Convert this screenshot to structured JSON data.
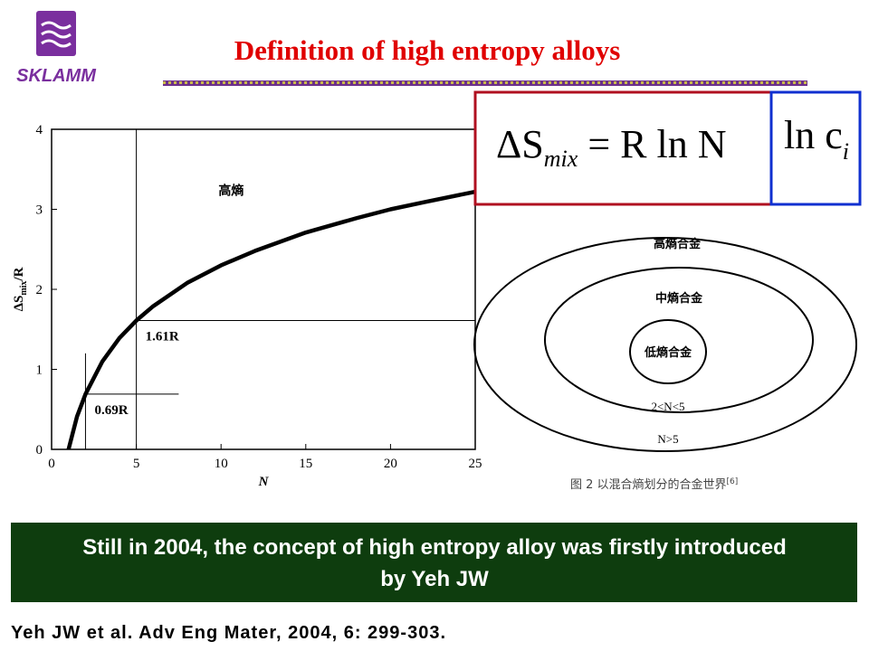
{
  "header": {
    "logo_text": "SKLAMM",
    "title": "Definition of high entropy alloys"
  },
  "chart_data": {
    "type": "line",
    "x_label": "N",
    "y_label": {
      "main": "ΔS",
      "sub": "mix",
      "rest": "/R"
    },
    "x": [
      1,
      1.5,
      2,
      3,
      4,
      5,
      6,
      8,
      10,
      12,
      15,
      18,
      20,
      22,
      25
    ],
    "series": [
      {
        "color": "#000000",
        "values": [
          0,
          0.41,
          0.69,
          1.1,
          1.39,
          1.61,
          1.79,
          2.08,
          2.3,
          2.48,
          2.71,
          2.89,
          3.0,
          3.09,
          3.22
        ]
      }
    ],
    "xlim": [
      0,
      25
    ],
    "ylim": [
      0,
      4
    ],
    "xticks": [
      0,
      5,
      10,
      15,
      20,
      25
    ],
    "yticks": [
      0,
      1,
      2,
      3,
      4
    ],
    "reference_lines": [
      {
        "x": 5,
        "y": 1.61,
        "x_end": 25,
        "y_end": 4,
        "label": "1.61R"
      },
      {
        "x": 2,
        "y": 0.69,
        "x_end": 7.5,
        "y_end": 1.2,
        "label": "0.69R"
      }
    ],
    "region_label": "高熵"
  },
  "formulas": {
    "entropy": {
      "lhs": "ΔS",
      "sub": "mix",
      "rhs": " = R ln N"
    },
    "ln_c": {
      "main": "ln c",
      "sub": "i"
    }
  },
  "diagram": {
    "rings": [
      "高熵合金",
      "中熵合金",
      "低熵合金"
    ],
    "bounds": [
      "2<N<5",
      "N>5"
    ],
    "caption": {
      "text": "图 2  以混合熵划分的合金世界",
      "ref": "[6]"
    }
  },
  "banner": {
    "lines": [
      "Still in 2004, the concept of high entropy alloy was firstly introduced",
      "by Yeh JW"
    ]
  },
  "reference": "Yeh JW et al. Adv Eng Mater, 2004, 6: 299-303."
}
